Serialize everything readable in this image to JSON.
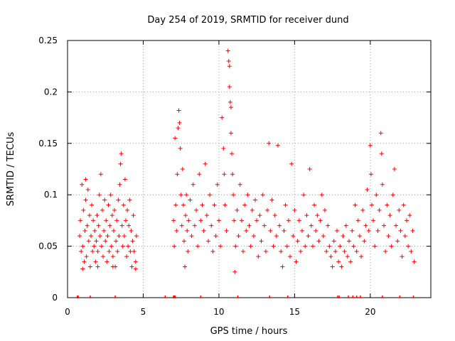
{
  "chart_data": {
    "type": "scatter",
    "title": "Day 254 of 2019, SRMTID for receiver dund",
    "xlabel": "GPS time / hours",
    "ylabel": "SRMTID / TECUs",
    "xlim": [
      0,
      24
    ],
    "ylim": [
      0,
      0.25
    ],
    "xticks": [
      0,
      5,
      10,
      15,
      20
    ],
    "yticks": [
      0,
      0.05,
      0.1,
      0.15,
      0.2,
      0.25
    ],
    "xtick_labels": [
      "0",
      "5",
      "10",
      "15",
      "20"
    ],
    "ytick_labels": [
      "0",
      "0.05",
      "0.1",
      "0.15",
      "0.2",
      "0.25"
    ],
    "grid": true,
    "marker": "+",
    "series": [
      {
        "name": "SRMTID",
        "color": "#ff0000",
        "points": [
          [
            0.8,
            0.06
          ],
          [
            0.85,
            0.075
          ],
          [
            0.9,
            0.045
          ],
          [
            0.95,
            0.11
          ],
          [
            1.0,
            0.05
          ],
          [
            1.05,
            0.085
          ],
          [
            1.1,
            0.035
          ],
          [
            1.15,
            0.065
          ],
          [
            1.2,
            0.095
          ],
          [
            1.25,
            0.04
          ],
          [
            1.3,
            0.07
          ],
          [
            1.35,
            0.105
          ],
          [
            1.4,
            0.055
          ],
          [
            1.45,
            0.08
          ],
          [
            1.5,
            0.03
          ],
          [
            1.55,
            0.06
          ],
          [
            1.6,
            0.09
          ],
          [
            1.65,
            0.045
          ],
          [
            1.7,
            0.075
          ],
          [
            1.75,
            0.05
          ],
          [
            1.8,
            0.065
          ],
          [
            1.85,
            0.035
          ],
          [
            1.9,
            0.055
          ],
          [
            1.95,
            0.08
          ],
          [
            2.0,
            0.045
          ],
          [
            2.05,
            0.07
          ],
          [
            2.1,
            0.1
          ],
          [
            2.15,
            0.06
          ],
          [
            2.2,
            0.12
          ],
          [
            2.25,
            0.05
          ],
          [
            2.3,
            0.085
          ],
          [
            2.35,
            0.04
          ],
          [
            2.4,
            0.065
          ],
          [
            2.45,
            0.095
          ],
          [
            2.5,
            0.055
          ],
          [
            2.55,
            0.075
          ],
          [
            2.6,
            0.035
          ],
          [
            2.65,
            0.06
          ],
          [
            2.7,
            0.09
          ],
          [
            2.75,
            0.045
          ],
          [
            2.8,
            0.07
          ],
          [
            2.85,
            0.1
          ],
          [
            2.9,
            0.05
          ],
          [
            2.95,
            0.08
          ],
          [
            3.0,
            0.04
          ],
          [
            3.05,
            0.065
          ],
          [
            3.1,
            0.085
          ],
          [
            3.15,
            0.03
          ],
          [
            3.2,
            0.055
          ],
          [
            3.25,
            0.075
          ],
          [
            3.3,
            0.045
          ],
          [
            3.35,
            0.095
          ],
          [
            3.4,
            0.06
          ],
          [
            3.45,
            0.11
          ],
          [
            3.5,
            0.13
          ],
          [
            3.55,
            0.14
          ],
          [
            3.6,
            0.07
          ],
          [
            3.65,
            0.05
          ],
          [
            3.7,
            0.09
          ],
          [
            3.75,
            0.06
          ],
          [
            3.8,
            0.115
          ],
          [
            3.85,
            0.075
          ],
          [
            3.9,
            0.04
          ],
          [
            3.95,
            0.085
          ],
          [
            4.0,
            0.05
          ],
          [
            4.05,
            0.07
          ],
          [
            4.1,
            0.095
          ],
          [
            4.15,
            0.045
          ],
          [
            4.2,
            0.065
          ],
          [
            4.25,
            0.03
          ],
          [
            4.3,
            0.055
          ],
          [
            4.35,
            0.08
          ],
          [
            4.4,
            0.045
          ],
          [
            4.5,
            0.035
          ],
          [
            4.55,
            0.06
          ],
          [
            1.0,
            0.028
          ],
          [
            2.0,
            0.03
          ],
          [
            3.0,
            0.03
          ],
          [
            4.5,
            0.028
          ],
          [
            1.2,
            0.115
          ],
          [
            7.0,
            0.075
          ],
          [
            7.05,
            0.05
          ],
          [
            7.1,
            0.155
          ],
          [
            7.15,
            0.09
          ],
          [
            7.2,
            0.065
          ],
          [
            7.25,
            0.12
          ],
          [
            7.3,
            0.165
          ],
          [
            7.35,
            0.182
          ],
          [
            7.4,
            0.17
          ],
          [
            7.45,
            0.145
          ],
          [
            7.5,
            0.1
          ],
          [
            7.55,
            0.07
          ],
          [
            7.6,
            0.125
          ],
          [
            7.65,
            0.09
          ],
          [
            7.7,
            0.055
          ],
          [
            7.75,
            0.03
          ],
          [
            7.8,
            0.08
          ],
          [
            7.85,
            0.1
          ],
          [
            7.9,
            0.065
          ],
          [
            7.95,
            0.045
          ],
          [
            8.0,
            0.075
          ],
          [
            8.1,
            0.095
          ],
          [
            8.2,
            0.06
          ],
          [
            8.3,
            0.11
          ],
          [
            8.4,
            0.07
          ],
          [
            8.5,
            0.085
          ],
          [
            8.6,
            0.05
          ],
          [
            8.7,
            0.12
          ],
          [
            8.8,
            0.075
          ],
          [
            8.9,
            0.09
          ],
          [
            9.0,
            0.065
          ],
          [
            9.1,
            0.13
          ],
          [
            9.2,
            0.08
          ],
          [
            9.3,
            0.055
          ],
          [
            9.4,
            0.1
          ],
          [
            9.5,
            0.07
          ],
          [
            9.6,
            0.045
          ],
          [
            9.7,
            0.09
          ],
          [
            9.8,
            0.06
          ],
          [
            9.9,
            0.11
          ],
          [
            10.0,
            0.075
          ],
          [
            10.1,
            0.05
          ],
          [
            10.2,
            0.175
          ],
          [
            10.3,
            0.145
          ],
          [
            10.35,
            0.12
          ],
          [
            10.4,
            0.09
          ],
          [
            10.5,
            0.065
          ],
          [
            10.6,
            0.24
          ],
          [
            10.65,
            0.23
          ],
          [
            10.7,
            0.205
          ],
          [
            10.75,
            0.19
          ],
          [
            10.8,
            0.16
          ],
          [
            10.85,
            0.14
          ],
          [
            10.9,
            0.12
          ],
          [
            10.95,
            0.1
          ],
          [
            11.0,
            0.075
          ],
          [
            11.05,
            0.025
          ],
          [
            11.1,
            0.05
          ],
          [
            11.2,
            0.085
          ],
          [
            11.3,
            0.06
          ],
          [
            11.4,
            0.11
          ],
          [
            11.5,
            0.075
          ],
          [
            11.6,
            0.045
          ],
          [
            11.7,
            0.09
          ],
          [
            11.8,
            0.065
          ],
          [
            11.9,
            0.1
          ],
          [
            12.0,
            0.07
          ],
          [
            12.1,
            0.05
          ],
          [
            12.2,
            0.085
          ],
          [
            12.3,
            0.06
          ],
          [
            12.4,
            0.095
          ],
          [
            12.5,
            0.075
          ],
          [
            12.6,
            0.04
          ],
          [
            12.7,
            0.08
          ],
          [
            12.8,
            0.055
          ],
          [
            12.9,
            0.1
          ],
          [
            13.0,
            0.07
          ],
          [
            13.1,
            0.045
          ],
          [
            13.2,
            0.085
          ],
          [
            13.3,
            0.15
          ],
          [
            13.4,
            0.065
          ],
          [
            13.5,
            0.095
          ],
          [
            13.6,
            0.05
          ],
          [
            13.7,
            0.08
          ],
          [
            13.8,
            0.06
          ],
          [
            13.9,
            0.148
          ],
          [
            14.0,
            0.07
          ],
          [
            14.1,
            0.045
          ],
          [
            14.2,
            0.03
          ],
          [
            14.3,
            0.065
          ],
          [
            14.4,
            0.09
          ],
          [
            14.5,
            0.05
          ],
          [
            14.6,
            0.075
          ],
          [
            14.7,
            0.04
          ],
          [
            14.8,
            0.13
          ],
          [
            14.9,
            0.06
          ],
          [
            15.0,
            0.085
          ],
          [
            15.1,
            0.035
          ],
          [
            15.2,
            0.055
          ],
          [
            15.3,
            0.075
          ],
          [
            15.4,
            0.045
          ],
          [
            15.5,
            0.065
          ],
          [
            15.6,
            0.1
          ],
          [
            15.7,
            0.05
          ],
          [
            15.8,
            0.08
          ],
          [
            15.9,
            0.06
          ],
          [
            16.0,
            0.125
          ],
          [
            16.1,
            0.07
          ],
          [
            16.2,
            0.05
          ],
          [
            16.3,
            0.09
          ],
          [
            16.4,
            0.065
          ],
          [
            16.5,
            0.08
          ],
          [
            16.6,
            0.055
          ],
          [
            16.7,
            0.075
          ],
          [
            16.8,
            0.1
          ],
          [
            16.9,
            0.06
          ],
          [
            17.0,
            0.085
          ],
          [
            17.1,
            0.045
          ],
          [
            17.2,
            0.07
          ],
          [
            17.3,
            0.05
          ],
          [
            17.4,
            0.04
          ],
          [
            17.5,
            0.03
          ],
          [
            17.6,
            0.055
          ],
          [
            17.7,
            0.045
          ],
          [
            17.8,
            0.065
          ],
          [
            17.9,
            0.035
          ],
          [
            18.0,
            0.05
          ],
          [
            18.1,
            0.03
          ],
          [
            18.2,
            0.06
          ],
          [
            18.3,
            0.045
          ],
          [
            18.4,
            0.07
          ],
          [
            18.5,
            0.04
          ],
          [
            18.6,
            0.055
          ],
          [
            18.7,
            0.035
          ],
          [
            18.8,
            0.065
          ],
          [
            18.9,
            0.05
          ],
          [
            19.0,
            0.09
          ],
          [
            19.1,
            0.045
          ],
          [
            19.2,
            0.075
          ],
          [
            19.3,
            0.06
          ],
          [
            19.4,
            0.04
          ],
          [
            19.5,
            0.085
          ],
          [
            19.6,
            0.055
          ],
          [
            19.7,
            0.07
          ],
          [
            19.8,
            0.105
          ],
          [
            19.9,
            0.065
          ],
          [
            20.0,
            0.148
          ],
          [
            20.05,
            0.12
          ],
          [
            20.1,
            0.09
          ],
          [
            20.2,
            0.075
          ],
          [
            20.3,
            0.05
          ],
          [
            20.4,
            0.1
          ],
          [
            20.5,
            0.065
          ],
          [
            20.6,
            0.085
          ],
          [
            20.7,
            0.16
          ],
          [
            20.75,
            0.14
          ],
          [
            20.8,
            0.11
          ],
          [
            20.9,
            0.07
          ],
          [
            21.0,
            0.045
          ],
          [
            21.1,
            0.09
          ],
          [
            21.2,
            0.06
          ],
          [
            21.3,
            0.08
          ],
          [
            21.4,
            0.05
          ],
          [
            21.5,
            0.1
          ],
          [
            21.6,
            0.125
          ],
          [
            21.7,
            0.07
          ],
          [
            21.8,
            0.055
          ],
          [
            21.9,
            0.085
          ],
          [
            22.0,
            0.065
          ],
          [
            22.1,
            0.04
          ],
          [
            22.2,
            0.09
          ],
          [
            22.3,
            0.06
          ],
          [
            22.4,
            0.075
          ],
          [
            22.5,
            0.05
          ],
          [
            22.6,
            0.08
          ],
          [
            22.7,
            0.045
          ],
          [
            22.8,
            0.065
          ],
          [
            22.9,
            0.035
          ],
          [
            10.7,
            0.225
          ],
          [
            10.8,
            0.185
          ]
        ]
      }
    ],
    "baseline_marks_x": [
      0.65,
      0.7,
      1.5,
      3.15,
      6.45,
      7.0,
      7.05,
      7.1,
      8.8,
      11.25,
      13.35,
      14.55,
      17.85,
      17.95,
      18.55,
      18.85,
      19.1,
      19.35,
      20.8,
      21.95,
      22.85
    ]
  }
}
